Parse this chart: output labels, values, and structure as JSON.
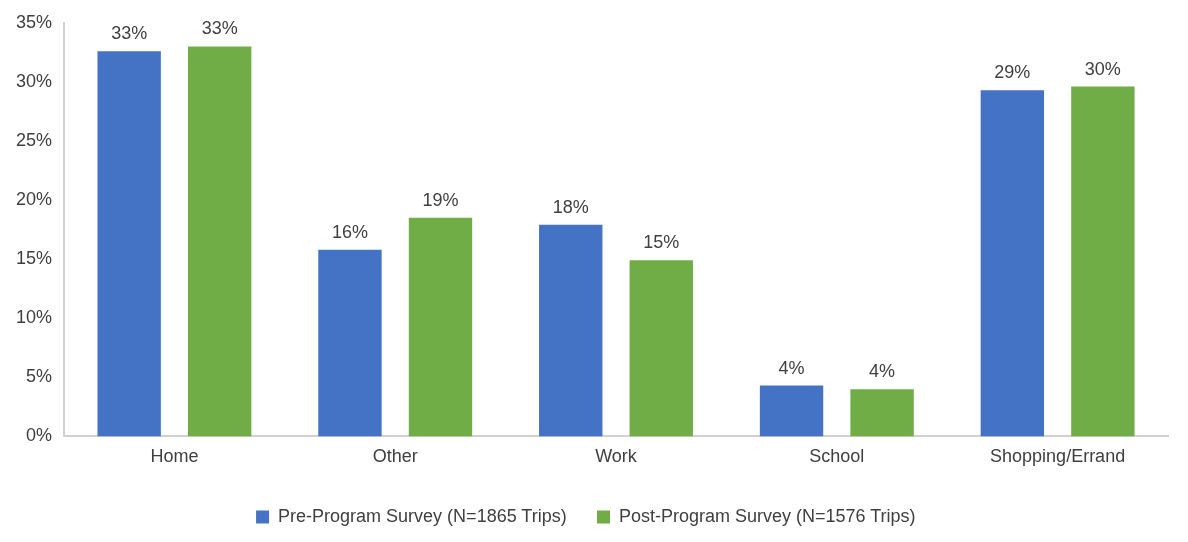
{
  "chart_data": {
    "type": "bar",
    "categories": [
      "Home",
      "Other",
      "Work",
      "School",
      "Shopping/Errand"
    ],
    "series": [
      {
        "name": "Pre-Program Survey (N=1865 Trips)",
        "color": "#4472c4",
        "values": [
          32.6,
          15.8,
          17.9,
          4.3,
          29.3
        ],
        "value_labels": [
          "33%",
          "16%",
          "18%",
          "4%",
          "29%"
        ]
      },
      {
        "name": "Post-Program Survey (N=1576 Trips)",
        "color": "#70ad47",
        "values": [
          33.0,
          18.5,
          14.9,
          4.0,
          29.6
        ],
        "value_labels": [
          "33%",
          "19%",
          "15%",
          "4%",
          "30%"
        ]
      }
    ],
    "ylim": [
      0,
      35
    ],
    "yticks": [
      {
        "value": 0,
        "label": "0%"
      },
      {
        "value": 5,
        "label": "5%"
      },
      {
        "value": 10,
        "label": "10%"
      },
      {
        "value": 15,
        "label": "15%"
      },
      {
        "value": 20,
        "label": "20%"
      },
      {
        "value": 25,
        "label": "25%"
      },
      {
        "value": 30,
        "label": "30%"
      },
      {
        "value": 35,
        "label": "35%"
      }
    ],
    "grid": false,
    "legend": "bottom"
  }
}
